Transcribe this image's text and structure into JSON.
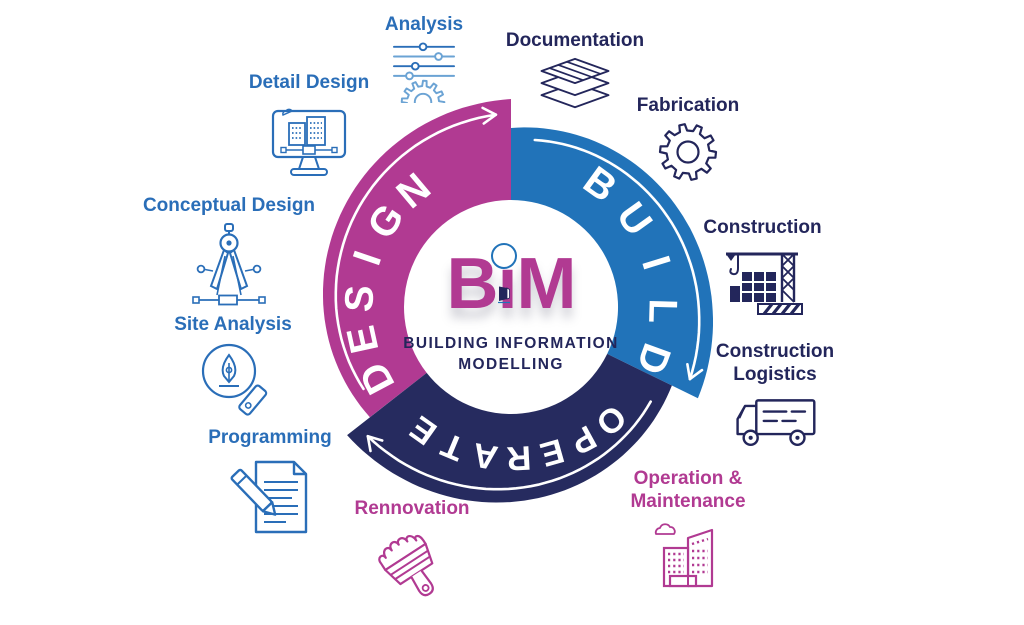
{
  "page": {
    "background": "#ffffff"
  },
  "logo": {
    "brand": "BiM",
    "brand_parts": {
      "left": "B",
      "stem": "ı",
      "right": "M"
    },
    "subtitle_line1": "BUILDING INFORMATION",
    "subtitle_line2": "MODELLING",
    "brand_color": "#b13a92",
    "subtitle_color": "#23265b",
    "dot_icon": "building-logo-icon"
  },
  "diagram": {
    "type": "cycle-ring",
    "arrow_color": "#ffffff",
    "segments": [
      {
        "id": "design",
        "label": "DESIGN",
        "color": "#b13a92",
        "a0": 232,
        "a1": 360,
        "text_mid": 281,
        "letter_step": 15.6,
        "font_size": 40
      },
      {
        "id": "build",
        "label": "BUILD",
        "color": "#2173b9",
        "a0": 0,
        "a1": 116,
        "text_mid": 73,
        "letter_step": 18.5,
        "font_size": 40
      },
      {
        "id": "operate",
        "label": "OPERATE",
        "color": "#262b5f",
        "a0": 116,
        "a1": 232,
        "text_mid": 177,
        "letter_step": 12.8,
        "font_size": 34
      }
    ],
    "labels": [
      {
        "id": "analysis",
        "lines": [
          "Analysis"
        ],
        "color": "#2a6eb8",
        "icon": "analysis-icon",
        "phase": "design"
      },
      {
        "id": "documentation",
        "lines": [
          "Documentation"
        ],
        "color": "#23265b",
        "icon": "documentation-icon",
        "phase": "build"
      },
      {
        "id": "fabrication",
        "lines": [
          "Fabrication"
        ],
        "color": "#23265b",
        "icon": "fabrication-icon",
        "phase": "build"
      },
      {
        "id": "construction",
        "lines": [
          "Construction"
        ],
        "color": "#23265b",
        "icon": "construction-icon",
        "phase": "build"
      },
      {
        "id": "construction-logistics",
        "lines": [
          "Construction",
          "Logistics"
        ],
        "color": "#23265b",
        "icon": "construction-logistics-icon",
        "phase": "build"
      },
      {
        "id": "operation-maintenance",
        "lines": [
          "Operation &",
          "Maintenance"
        ],
        "color": "#b13a92",
        "icon": "operation-maintenance-icon",
        "phase": "operate"
      },
      {
        "id": "rennovation",
        "lines": [
          "Rennovation"
        ],
        "color": "#b13a92",
        "icon": "rennovation-icon",
        "phase": "operate"
      },
      {
        "id": "programming",
        "lines": [
          "Programming"
        ],
        "color": "#2a6eb8",
        "icon": "programming-icon",
        "phase": "design"
      },
      {
        "id": "site-analysis",
        "lines": [
          "Site Analysis"
        ],
        "color": "#2a6eb8",
        "icon": "site-analysis-icon",
        "phase": "design"
      },
      {
        "id": "conceptual-design",
        "lines": [
          "Conceptual Design"
        ],
        "color": "#2a6eb8",
        "icon": "conceptual-design-icon",
        "phase": "design"
      },
      {
        "id": "detail-design",
        "lines": [
          "Detail Design"
        ],
        "color": "#2a6eb8",
        "icon": "detail-design-icon",
        "phase": "design"
      }
    ]
  }
}
